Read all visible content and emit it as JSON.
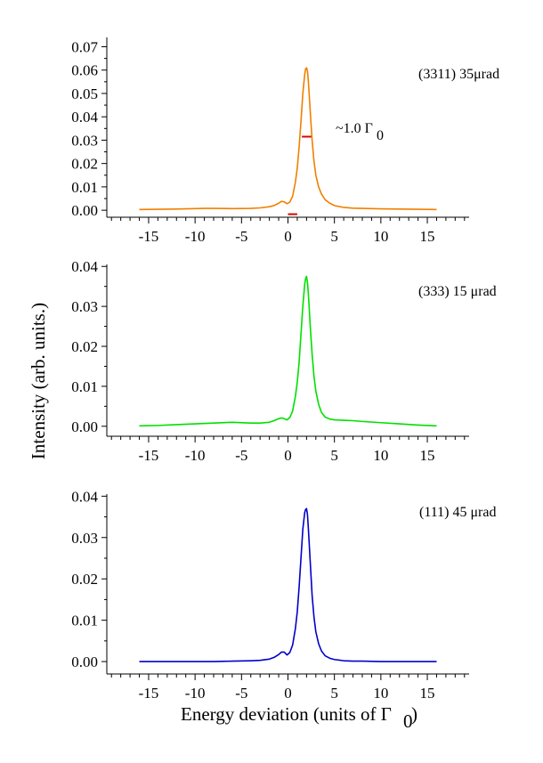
{
  "chart_data": [
    {
      "type": "line",
      "annotation": "(3311) 35μrad",
      "fwhm_label": "~1.0 Γ",
      "fwhm_label_sub": "0",
      "color": "#f08000",
      "marker_color": "#e00000",
      "xlim": [
        -19.5,
        19.5
      ],
      "ylim": [
        -0.003,
        0.074
      ],
      "xticks": [
        -15,
        -10,
        -5,
        0,
        5,
        10,
        15
      ],
      "xtick_labels": [
        "-15",
        "-10",
        "-5",
        "0",
        "5",
        "10",
        "15"
      ],
      "yticks": [
        0.0,
        0.01,
        0.02,
        0.03,
        0.04,
        0.05,
        0.06,
        0.07
      ],
      "ytick_labels": [
        "0.00",
        "0.01",
        "0.02",
        "0.03",
        "0.04",
        "0.05",
        "0.06",
        "0.07"
      ],
      "fwhm_bar": {
        "x": [
          1.5,
          2.5
        ],
        "y": 0.0315
      },
      "ref_bar": {
        "x": [
          0.0,
          1.0
        ],
        "y": -0.0017
      },
      "series": [
        {
          "x": [
            -16,
            -14,
            -12,
            -10,
            -9,
            -8,
            -6,
            -4,
            -3,
            -2,
            -1.5,
            -1.0,
            -0.7,
            -0.4,
            -0.1,
            0.2,
            0.5,
            0.8,
            1.0,
            1.2,
            1.4,
            1.6,
            1.8,
            1.9,
            2.0,
            2.1,
            2.2,
            2.4,
            2.6,
            2.8,
            3.0,
            3.3,
            3.6,
            4.0,
            4.5,
            5.0,
            6.0,
            7.0,
            8.0,
            10.0,
            12.0,
            14.0,
            16.0
          ],
          "y": [
            0.0003,
            0.0004,
            0.0005,
            0.0007,
            0.0008,
            0.0008,
            0.0007,
            0.0008,
            0.001,
            0.0015,
            0.002,
            0.003,
            0.0038,
            0.0036,
            0.0028,
            0.0035,
            0.006,
            0.012,
            0.018,
            0.027,
            0.038,
            0.05,
            0.058,
            0.0605,
            0.061,
            0.0595,
            0.055,
            0.042,
            0.03,
            0.021,
            0.015,
            0.01,
            0.007,
            0.0045,
            0.003,
            0.002,
            0.0012,
            0.0009,
            0.0008,
            0.0006,
            0.0005,
            0.0004,
            0.0003
          ]
        }
      ]
    },
    {
      "type": "line",
      "annotation": "(333) 15 μrad",
      "color": "#00e000",
      "xlim": [
        -19.5,
        19.5
      ],
      "ylim": [
        -0.0025,
        0.0405
      ],
      "xticks": [
        -15,
        -10,
        -5,
        0,
        5,
        10,
        15
      ],
      "xtick_labels": [
        "-15",
        "-10",
        "-5",
        "0",
        "5",
        "10",
        "15"
      ],
      "yticks": [
        0.0,
        0.01,
        0.02,
        0.03,
        0.04
      ],
      "ytick_labels": [
        "0.00",
        "0.01",
        "0.02",
        "0.03",
        "0.04"
      ],
      "series": [
        {
          "x": [
            -16,
            -14,
            -12,
            -10,
            -8,
            -6,
            -4,
            -3,
            -2,
            -1.5,
            -1.0,
            -0.7,
            -0.4,
            -0.1,
            0.2,
            0.5,
            0.8,
            1.0,
            1.2,
            1.4,
            1.6,
            1.8,
            1.9,
            2.0,
            2.1,
            2.2,
            2.4,
            2.6,
            2.8,
            3.0,
            3.3,
            3.6,
            4.0,
            4.5,
            5.0,
            6.0,
            7.0,
            8.0,
            10.0,
            12.0,
            14.0,
            16.0
          ],
          "y": [
            0.0001,
            0.0002,
            0.0004,
            0.0006,
            0.0008,
            0.001,
            0.0008,
            0.0008,
            0.001,
            0.0014,
            0.0019,
            0.0021,
            0.0019,
            0.0016,
            0.0022,
            0.0038,
            0.0075,
            0.011,
            0.016,
            0.023,
            0.03,
            0.0355,
            0.037,
            0.0375,
            0.036,
            0.033,
            0.025,
            0.018,
            0.0125,
            0.0088,
            0.0055,
            0.0035,
            0.0023,
            0.0018,
            0.0016,
            0.0015,
            0.0014,
            0.0012,
            0.0009,
            0.0006,
            0.0003,
            0.0001
          ]
        }
      ]
    },
    {
      "type": "line",
      "annotation": "(111) 45 μrad",
      "color": "#0000cc",
      "xlim": [
        -19.5,
        19.5
      ],
      "ylim": [
        -0.003,
        0.0405
      ],
      "xticks": [
        -15,
        -10,
        -5,
        0,
        5,
        10,
        15
      ],
      "xtick_labels": [
        "-15",
        "-10",
        "-5",
        "0",
        "5",
        "10",
        "15"
      ],
      "yticks": [
        0.0,
        0.01,
        0.02,
        0.03,
        0.04
      ],
      "ytick_labels": [
        "0.00",
        "0.01",
        "0.02",
        "0.03",
        "0.04"
      ],
      "xlabel": "Energy deviation (units of Γ",
      "xlabel_sub": "0",
      "xlabel_end": ")",
      "series": [
        {
          "x": [
            -16,
            -14,
            -12,
            -10,
            -8,
            -6,
            -4,
            -3,
            -2,
            -1.5,
            -1.0,
            -0.7,
            -0.4,
            -0.1,
            0.2,
            0.5,
            0.8,
            1.0,
            1.2,
            1.4,
            1.6,
            1.8,
            1.9,
            2.0,
            2.1,
            2.2,
            2.4,
            2.6,
            2.8,
            3.0,
            3.3,
            3.6,
            4.0,
            4.5,
            5.0,
            6.0,
            7.0,
            8.0,
            10.0,
            12.0,
            14.0,
            16.0
          ],
          "y": [
            0.0,
            0.0,
            0.0,
            0.0,
            0.0,
            0.0001,
            0.0002,
            0.0003,
            0.0006,
            0.001,
            0.0017,
            0.0023,
            0.0023,
            0.0016,
            0.0022,
            0.004,
            0.008,
            0.012,
            0.018,
            0.025,
            0.032,
            0.036,
            0.0368,
            0.037,
            0.0355,
            0.032,
            0.024,
            0.016,
            0.0108,
            0.0072,
            0.0043,
            0.0026,
            0.0014,
            0.0008,
            0.0005,
            0.0002,
            0.0001,
            0.0001,
            0.0,
            0.0,
            0.0,
            0.0
          ]
        }
      ]
    }
  ],
  "ylabel": "Intensity (arb. units.)"
}
